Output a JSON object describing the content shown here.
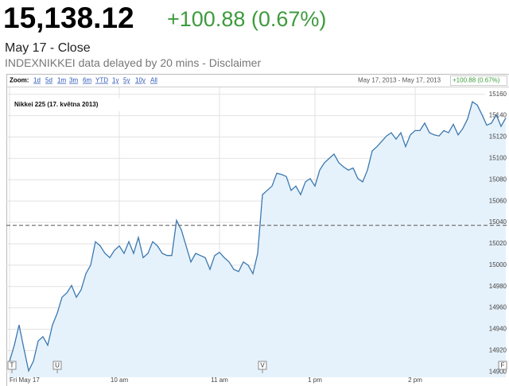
{
  "header": {
    "price": "15,138.12",
    "change": "+100.88 (0.67%)",
    "date": "May 17 - Close",
    "source": "INDEXNIKKEI data delayed by 20 mins - Disclaimer"
  },
  "toolbar": {
    "zoom_label": "Zoom:",
    "zoom_options": [
      "1d",
      "5d",
      "1m",
      "3m",
      "6m",
      "YTD",
      "1y",
      "5y",
      "10y",
      "All"
    ],
    "date_range": "May 17, 2013 - May 17, 2013",
    "change": "+100.88 (0.67%)"
  },
  "chart_data": {
    "type": "area",
    "title": "Nikkei 225 (17. května 2013)",
    "color": "#3b78b0",
    "fill": "#e6f2fb",
    "values": [
      14910,
      14925,
      14944,
      14922,
      14901,
      14910,
      14929,
      14933,
      14925,
      14944,
      14955,
      14970,
      14974,
      14981,
      14970,
      14977,
      14992,
      15000,
      15022,
      15018,
      15011,
      15007,
      15014,
      15018,
      15011,
      15022,
      15011,
      15026,
      15007,
      15011,
      15022,
      15018,
      15011,
      15009,
      15009,
      15042,
      15033,
      15018,
      15003,
      15011,
      15009,
      15007,
      14996,
      15009,
      15012,
      15007,
      15003,
      14996,
      14994,
      15003,
      15000,
      14992,
      15011,
      15066,
      15070,
      15074,
      15086,
      15085,
      15083,
      15070,
      15074,
      15066,
      15078,
      15081,
      15074,
      15089,
      15096,
      15100,
      15104,
      15096,
      15092,
      15089,
      15091,
      15081,
      15078,
      15089,
      15107,
      15111,
      15116,
      15121,
      15124,
      15118,
      15124,
      15111,
      15122,
      15126,
      15126,
      15133,
      15124,
      15122,
      15121,
      15126,
      15124,
      15132,
      15122,
      15128,
      15137,
      15153,
      15150,
      15141,
      15131,
      15133,
      15141,
      15130,
      15138
    ],
    "xlim": [
      0,
      104
    ],
    "xticks": [
      {
        "value": 0,
        "label": "Fri May 17"
      },
      {
        "value": 23,
        "label": "10 am"
      },
      {
        "value": 44,
        "label": "11 am"
      },
      {
        "value": 64,
        "label": "1 pm"
      },
      {
        "value": 85,
        "label": "2 pm"
      }
    ],
    "ylim": [
      14895,
      15165
    ],
    "yticks": [
      14900,
      14920,
      14940,
      14960,
      14980,
      15000,
      15020,
      15040,
      15060,
      15080,
      15100,
      15120,
      15140,
      15160
    ],
    "reference_line": 15037.24,
    "grid": true,
    "markers": [
      {
        "label": "T",
        "x": 0
      },
      {
        "label": "U",
        "x": 10
      },
      {
        "label": "V",
        "x": 53
      },
      {
        "label": "F",
        "x": 104
      }
    ]
  }
}
